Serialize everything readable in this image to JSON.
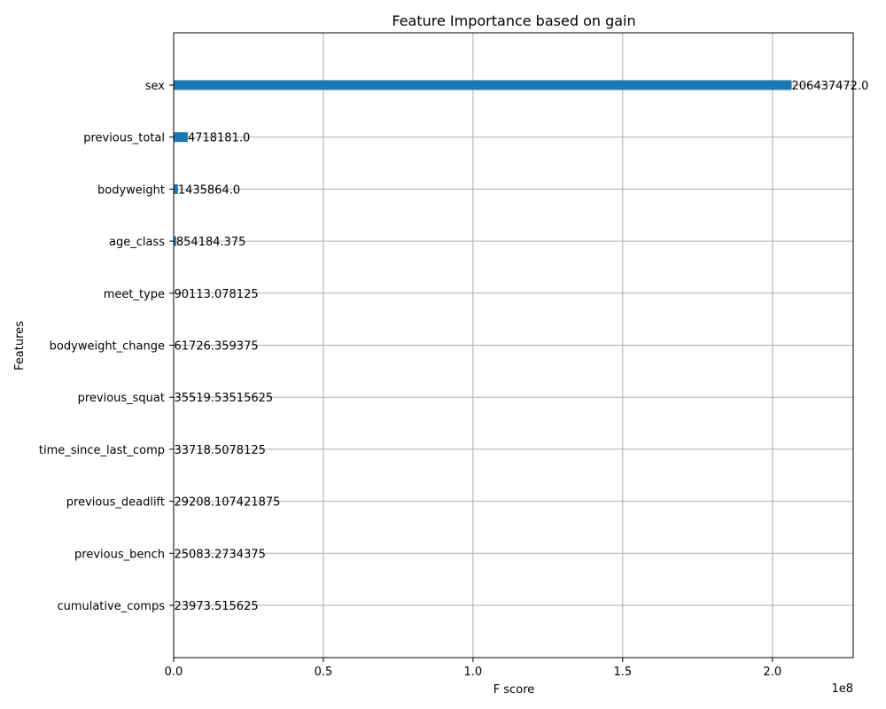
{
  "chart_data": {
    "type": "bar",
    "orientation": "horizontal",
    "title": "Feature Importance based on gain",
    "xlabel": "F score",
    "ylabel": "Features",
    "x_offset_label": "1e8",
    "x_multiplier": 100000000,
    "xlim": [
      0,
      227000000
    ],
    "x_ticks": [
      0,
      50000000,
      100000000,
      150000000,
      200000000
    ],
    "x_tick_labels": [
      "0.0",
      "0.5",
      "1.0",
      "1.5",
      "2.0"
    ],
    "grid": true,
    "bar_color": "#1f77b4",
    "categories": [
      "sex",
      "previous_total",
      "bodyweight",
      "age_class",
      "meet_type",
      "bodyweight_change",
      "previous_squat",
      "time_since_last_comp",
      "previous_deadlift",
      "previous_bench",
      "cumulative_comps"
    ],
    "values": [
      206437472.0,
      4718181.0,
      1435864.0,
      854184.375,
      90113.078125,
      61726.359375,
      35519.53515625,
      33718.5078125,
      29208.107421875,
      25083.2734375,
      23973.515625
    ],
    "value_labels": [
      "206437472.0",
      "4718181.0",
      "1435864.0",
      "854184.375",
      "90113.078125",
      "61726.359375",
      "35519.53515625",
      "33718.5078125",
      "29208.107421875",
      "25083.2734375",
      "23973.515625"
    ]
  }
}
